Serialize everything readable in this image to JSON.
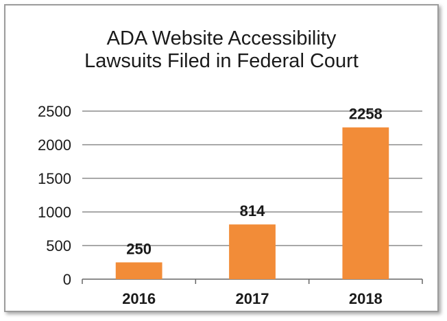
{
  "chart_data": {
    "type": "bar",
    "title_lines": [
      "ADA Website Accessibility",
      "Lawsuits Filed in Federal Court"
    ],
    "categories": [
      "2016",
      "2017",
      "2018"
    ],
    "values": [
      250,
      814,
      2258
    ],
    "data_labels": [
      "250",
      "814",
      "2258"
    ],
    "y_ticks": [
      0,
      500,
      1000,
      1500,
      2000,
      2500
    ],
    "y_tick_labels": [
      "0",
      "500",
      "1000",
      "1500",
      "2000",
      "2500"
    ],
    "ylim": [
      0,
      2500
    ],
    "xlabel": "",
    "ylabel": "",
    "grid": true,
    "legend": "none",
    "colors": {
      "bar": "#F28C38",
      "grid": "#8c8c8c",
      "axis": "#666666",
      "text": "#1a1a1a"
    }
  }
}
